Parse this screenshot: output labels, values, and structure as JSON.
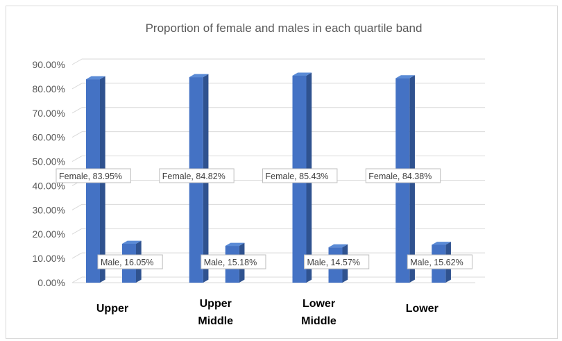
{
  "chart_data": {
    "type": "bar",
    "title": "Proportion of female and males in each quartile band",
    "categories": [
      [
        "Upper"
      ],
      [
        "Upper",
        "Middle"
      ],
      [
        "Lower",
        "Middle"
      ],
      [
        "Lower"
      ]
    ],
    "series": [
      {
        "name": "Female",
        "values": [
          83.95,
          84.82,
          85.43,
          84.38
        ],
        "labels": [
          "Female, 83.95%",
          "Female, 84.82%",
          "Female, 85.43%",
          "Female, 84.38%"
        ]
      },
      {
        "name": "Male",
        "values": [
          16.05,
          15.18,
          14.57,
          15.62
        ],
        "labels": [
          "Male, 16.05%",
          "Male, 15.18%",
          "Male, 14.57%",
          "Male, 15.62%"
        ]
      }
    ],
    "yticks": [
      "0.00%",
      "10.00%",
      "20.00%",
      "30.00%",
      "40.00%",
      "50.00%",
      "60.00%",
      "70.00%",
      "80.00%",
      "90.00%"
    ],
    "ylim": [
      0,
      90
    ],
    "grid": true,
    "style": "3d-clustered-column",
    "colors": {
      "bar_front": "#4472C4",
      "bar_side": "#2F528F",
      "bar_top": "#5B8BD6",
      "grid": "#d9d9d9"
    }
  }
}
